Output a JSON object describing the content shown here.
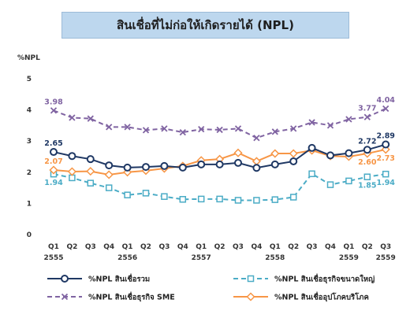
{
  "title": "สินเชื่อที่ไม่ก่อให้เกิดรายได้ (NPL)",
  "chart_data": {
    "type": "line",
    "ylabel": "%NPL",
    "ylim": [
      0,
      5
    ],
    "yticks": [
      "0",
      "1",
      "2",
      "3",
      "4",
      "5"
    ],
    "categories": [
      "Q1",
      "Q2",
      "Q3",
      "Q4",
      "Q1",
      "Q2",
      "Q3",
      "Q4",
      "Q1",
      "Q2",
      "Q3",
      "Q4",
      "Q1",
      "Q2",
      "Q3",
      "Q4",
      "Q1",
      "Q2",
      "Q3"
    ],
    "years": [
      {
        "label": "2555",
        "index": 0
      },
      {
        "label": "2556",
        "index": 4
      },
      {
        "label": "2557",
        "index": 8
      },
      {
        "label": "2558",
        "index": 12
      },
      {
        "label": "2559",
        "index": 16
      },
      {
        "label": "2559",
        "index": 18
      }
    ],
    "series": [
      {
        "name": "%NPL สินเชื่อรวม",
        "color": "#1f3864",
        "style": "solid",
        "marker": "circle",
        "values": [
          2.65,
          2.52,
          2.42,
          2.22,
          2.15,
          2.17,
          2.2,
          2.15,
          2.25,
          2.25,
          2.3,
          2.14,
          2.25,
          2.35,
          2.78,
          2.54,
          2.61,
          2.72,
          2.89
        ]
      },
      {
        "name": "%NPL สินเชื่อธุรกิจขนาดใหญ่",
        "color": "#4bacc6",
        "style": "dashed",
        "marker": "square",
        "values": [
          1.94,
          1.82,
          1.65,
          1.5,
          1.27,
          1.33,
          1.22,
          1.13,
          1.14,
          1.14,
          1.1,
          1.1,
          1.12,
          1.2,
          1.95,
          1.6,
          1.72,
          1.85,
          1.94
        ]
      },
      {
        "name": "%NPL สินเชื่อธุรกิจ SME",
        "color": "#8064a2",
        "style": "dashed",
        "marker": "x",
        "values": [
          3.98,
          3.75,
          3.72,
          3.45,
          3.45,
          3.35,
          3.4,
          3.28,
          3.38,
          3.36,
          3.4,
          3.1,
          3.3,
          3.4,
          3.6,
          3.5,
          3.7,
          3.77,
          4.04
        ]
      },
      {
        "name": "%NPL สินเชื่ออุปโภคบริโภค",
        "color": "#f79646",
        "style": "solid",
        "marker": "diamond",
        "values": [
          2.07,
          2.02,
          2.03,
          1.92,
          2.0,
          2.05,
          2.12,
          2.2,
          2.38,
          2.42,
          2.62,
          2.35,
          2.6,
          2.6,
          2.7,
          2.52,
          2.5,
          2.6,
          2.73
        ]
      }
    ],
    "data_labels": [
      {
        "series": 0,
        "index": 0,
        "text": "2.65",
        "pos": "above"
      },
      {
        "series": 0,
        "index": 17,
        "text": "2.72",
        "pos": "above"
      },
      {
        "series": 0,
        "index": 18,
        "text": "2.89",
        "pos": "above"
      },
      {
        "series": 1,
        "index": 0,
        "text": "1.94",
        "pos": "below"
      },
      {
        "series": 1,
        "index": 17,
        "text": "1.85",
        "pos": "below"
      },
      {
        "series": 1,
        "index": 18,
        "text": "1.94",
        "pos": "below"
      },
      {
        "series": 2,
        "index": 0,
        "text": "3.98",
        "pos": "above"
      },
      {
        "series": 2,
        "index": 17,
        "text": "3.77",
        "pos": "above"
      },
      {
        "series": 2,
        "index": 18,
        "text": "4.04",
        "pos": "above"
      },
      {
        "series": 3,
        "index": 0,
        "text": "2.07",
        "pos": "above"
      },
      {
        "series": 3,
        "index": 17,
        "text": "2.60",
        "pos": "below"
      },
      {
        "series": 3,
        "index": 18,
        "text": "2.73",
        "pos": "below"
      }
    ],
    "legend": {
      "placement": "bottom",
      "columns": 2
    }
  }
}
